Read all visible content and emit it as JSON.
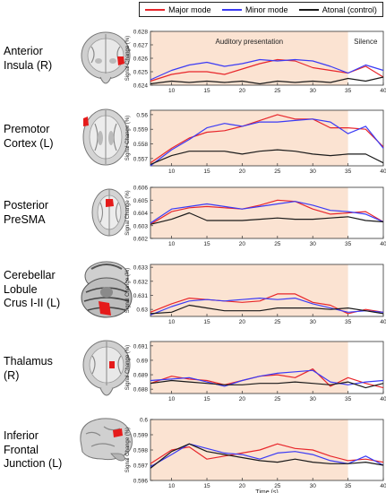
{
  "legend": [
    {
      "label": "Major mode",
      "color": "#e8262b"
    },
    {
      "label": "Minor mode",
      "color": "#3b3bf5"
    },
    {
      "label": "Atonal (control)",
      "color": "#1a1a1a"
    }
  ],
  "colors": {
    "major": "#e8262b",
    "minor": "#3b3bf5",
    "atonal": "#1a1a1a",
    "auditory_shading": "#fbe3d2",
    "roi_marker": "#e51b1b"
  },
  "periods": {
    "auditory": "Auditory presentation",
    "silence": "Silence"
  },
  "x_axis_label": "Time (s)",
  "y_axis_label": "Signal Change (%)",
  "x_ticks": [
    10,
    15,
    20,
    25,
    30,
    35,
    40
  ],
  "regions": [
    {
      "label_lines": [
        "Anterior",
        "Insula (R)"
      ],
      "brain_icon": "coronal-brain-icon"
    },
    {
      "label_lines": [
        "Premotor",
        "Cortex (L)"
      ],
      "brain_icon": "axial-brain-icon"
    },
    {
      "label_lines": [
        "Posterior",
        "PreSMA"
      ],
      "brain_icon": "axial-brain-icon"
    },
    {
      "label_lines": [
        "Cerebellar",
        "Lobule",
        "Crus I-II (L)"
      ],
      "brain_icon": "cerebellum-brain-icon"
    },
    {
      "label_lines": [
        "Thalamus",
        "(R)"
      ],
      "brain_icon": "coronal-brain-icon"
    },
    {
      "label_lines": [
        "Inferior",
        "Frontal",
        "Junction (L)"
      ],
      "brain_icon": "sagittal-brain-icon"
    }
  ],
  "chart_data": [
    {
      "type": "line",
      "region": "Anterior Insula (R)",
      "x": [
        7,
        10,
        12.5,
        15,
        17.5,
        20,
        22.5,
        25,
        27.5,
        30,
        32.5,
        35,
        37.5,
        40
      ],
      "xlim": [
        7,
        40
      ],
      "ylim": [
        0.624,
        0.628
      ],
      "yticks": [
        0.624,
        0.625,
        0.626,
        0.627,
        0.628
      ],
      "auditory_range": [
        7,
        35
      ],
      "show_period_labels": true,
      "series": [
        {
          "name": "Major mode",
          "values": [
            0.6243,
            0.6248,
            0.625,
            0.625,
            0.6248,
            0.6252,
            0.6256,
            0.6259,
            0.6258,
            0.6253,
            0.6251,
            0.6249,
            0.6254,
            0.6246
          ]
        },
        {
          "name": "Minor mode",
          "values": [
            0.6244,
            0.6251,
            0.6255,
            0.6257,
            0.6254,
            0.6256,
            0.6259,
            0.6258,
            0.6259,
            0.6258,
            0.6254,
            0.6249,
            0.6255,
            0.6251
          ]
        },
        {
          "name": "Atonal (control)",
          "values": [
            0.6241,
            0.6243,
            0.6242,
            0.6243,
            0.6242,
            0.6243,
            0.6241,
            0.6243,
            0.6242,
            0.6243,
            0.6242,
            0.6245,
            0.6243,
            0.6246
          ]
        }
      ]
    },
    {
      "type": "line",
      "region": "Premotor Cortex (L)",
      "x": [
        7,
        10,
        12.5,
        15,
        17.5,
        20,
        22.5,
        25,
        27.5,
        30,
        32.5,
        35,
        37.5,
        40
      ],
      "xlim": [
        7,
        40
      ],
      "ylim": [
        0.5565,
        0.5603
      ],
      "yticks": [
        0.557,
        0.558,
        0.559,
        0.56
      ],
      "auditory_range": [
        7,
        35
      ],
      "show_period_labels": false,
      "series": [
        {
          "name": "Major mode",
          "values": [
            0.5567,
            0.5577,
            0.5584,
            0.5588,
            0.5589,
            0.5592,
            0.5596,
            0.56,
            0.5597,
            0.5597,
            0.5591,
            0.5591,
            0.559,
            0.5578
          ]
        },
        {
          "name": "Minor mode",
          "values": [
            0.5565,
            0.5576,
            0.5583,
            0.5591,
            0.5594,
            0.5592,
            0.5595,
            0.5595,
            0.5596,
            0.5597,
            0.5595,
            0.5587,
            0.5592,
            0.5577
          ]
        },
        {
          "name": "Atonal (control)",
          "values": [
            0.5566,
            0.5572,
            0.5575,
            0.5575,
            0.5575,
            0.5573,
            0.5575,
            0.5576,
            0.5575,
            0.5573,
            0.5572,
            0.5573,
            0.5573,
            0.5567
          ]
        }
      ]
    },
    {
      "type": "line",
      "region": "Posterior PreSMA",
      "x": [
        7,
        10,
        12.5,
        15,
        17.5,
        20,
        22.5,
        25,
        27.5,
        30,
        32.5,
        35,
        37.5,
        40
      ],
      "xlim": [
        7,
        40
      ],
      "ylim": [
        0.602,
        0.606
      ],
      "yticks": [
        0.602,
        0.603,
        0.604,
        0.605,
        0.606
      ],
      "auditory_range": [
        7,
        35
      ],
      "show_period_labels": false,
      "series": [
        {
          "name": "Major mode",
          "values": [
            0.6031,
            0.6041,
            0.6044,
            0.6045,
            0.6044,
            0.6043,
            0.6046,
            0.605,
            0.6049,
            0.6043,
            0.6039,
            0.604,
            0.6041,
            0.6033
          ]
        },
        {
          "name": "Minor mode",
          "values": [
            0.6032,
            0.6043,
            0.6045,
            0.6047,
            0.6045,
            0.6043,
            0.6045,
            0.6047,
            0.6049,
            0.6046,
            0.6042,
            0.6041,
            0.6039,
            0.6033
          ]
        },
        {
          "name": "Atonal (control)",
          "values": [
            0.6031,
            0.6035,
            0.604,
            0.6034,
            0.6034,
            0.6034,
            0.6035,
            0.6036,
            0.6035,
            0.6035,
            0.6036,
            0.6037,
            0.6034,
            0.6033
          ]
        }
      ]
    },
    {
      "type": "line",
      "region": "Cerebellar Lobule Crus I-II (L)",
      "x": [
        7,
        10,
        12.5,
        15,
        17.5,
        20,
        22.5,
        25,
        27.5,
        30,
        32.5,
        35,
        37.5,
        40
      ],
      "xlim": [
        7,
        40
      ],
      "ylim": [
        0.6295,
        0.6332
      ],
      "yticks": [
        0.63,
        0.631,
        0.632,
        0.633
      ],
      "auditory_range": [
        7,
        35
      ],
      "show_period_labels": false,
      "series": [
        {
          "name": "Major mode",
          "values": [
            0.6298,
            0.6304,
            0.6308,
            0.6307,
            0.6306,
            0.6305,
            0.6306,
            0.6311,
            0.6311,
            0.6305,
            0.6303,
            0.6297,
            0.63,
            0.6298
          ]
        },
        {
          "name": "Minor mode",
          "values": [
            0.6296,
            0.6302,
            0.6306,
            0.6307,
            0.6306,
            0.6307,
            0.6308,
            0.6307,
            0.6308,
            0.6304,
            0.6301,
            0.6298,
            0.6299,
            0.6298
          ]
        },
        {
          "name": "Atonal (control)",
          "values": [
            0.6297,
            0.6298,
            0.6303,
            0.6301,
            0.6299,
            0.6299,
            0.6299,
            0.6301,
            0.6301,
            0.6301,
            0.63,
            0.6301,
            0.6299,
            0.6297
          ]
        }
      ]
    },
    {
      "type": "line",
      "region": "Thalamus (R)",
      "x": [
        7,
        10,
        12.5,
        15,
        17.5,
        20,
        22.5,
        25,
        27.5,
        30,
        32.5,
        35,
        37.5,
        40
      ],
      "xlim": [
        7,
        40
      ],
      "ylim": [
        0.6877,
        0.6913
      ],
      "yticks": [
        0.688,
        0.689,
        0.69,
        0.691
      ],
      "auditory_range": [
        7,
        35
      ],
      "show_period_labels": false,
      "series": [
        {
          "name": "Major mode",
          "values": [
            0.6884,
            0.6889,
            0.6887,
            0.6886,
            0.6883,
            0.6886,
            0.6889,
            0.689,
            0.6888,
            0.6894,
            0.6882,
            0.6888,
            0.6884,
            0.6881
          ]
        },
        {
          "name": "Minor mode",
          "values": [
            0.6886,
            0.6887,
            0.6888,
            0.6885,
            0.6882,
            0.6886,
            0.6889,
            0.6891,
            0.6892,
            0.6893,
            0.6885,
            0.6883,
            0.6885,
            0.6886
          ]
        },
        {
          "name": "Atonal (control)",
          "values": [
            0.6884,
            0.6886,
            0.6885,
            0.6884,
            0.6883,
            0.6883,
            0.6884,
            0.6884,
            0.6885,
            0.6884,
            0.6883,
            0.6885,
            0.6881,
            0.6884
          ]
        }
      ]
    },
    {
      "type": "line",
      "region": "Inferior Frontal Junction (L)",
      "x": [
        7,
        10,
        12.5,
        15,
        17.5,
        20,
        22.5,
        25,
        27.5,
        30,
        32.5,
        35,
        37.5,
        40
      ],
      "xlim": [
        7,
        40
      ],
      "ylim": [
        0.596,
        0.6
      ],
      "yticks": [
        0.596,
        0.597,
        0.598,
        0.599,
        0.6
      ],
      "auditory_range": [
        7,
        35
      ],
      "show_period_labels": false,
      "xlabel": "Time (s)",
      "show_xticks": true,
      "series": [
        {
          "name": "Major mode",
          "values": [
            0.5971,
            0.598,
            0.5982,
            0.5974,
            0.5976,
            0.5978,
            0.598,
            0.5984,
            0.5981,
            0.598,
            0.5976,
            0.5973,
            0.5974,
            0.5972
          ]
        },
        {
          "name": "Minor mode",
          "values": [
            0.5969,
            0.5977,
            0.5984,
            0.5981,
            0.5978,
            0.5977,
            0.5974,
            0.5978,
            0.5979,
            0.5977,
            0.5973,
            0.5971,
            0.5976,
            0.597
          ]
        },
        {
          "name": "Atonal (control)",
          "values": [
            0.5968,
            0.5979,
            0.5984,
            0.5979,
            0.5977,
            0.5975,
            0.5973,
            0.5972,
            0.5974,
            0.5972,
            0.5971,
            0.5971,
            0.5972,
            0.597
          ]
        }
      ]
    }
  ]
}
